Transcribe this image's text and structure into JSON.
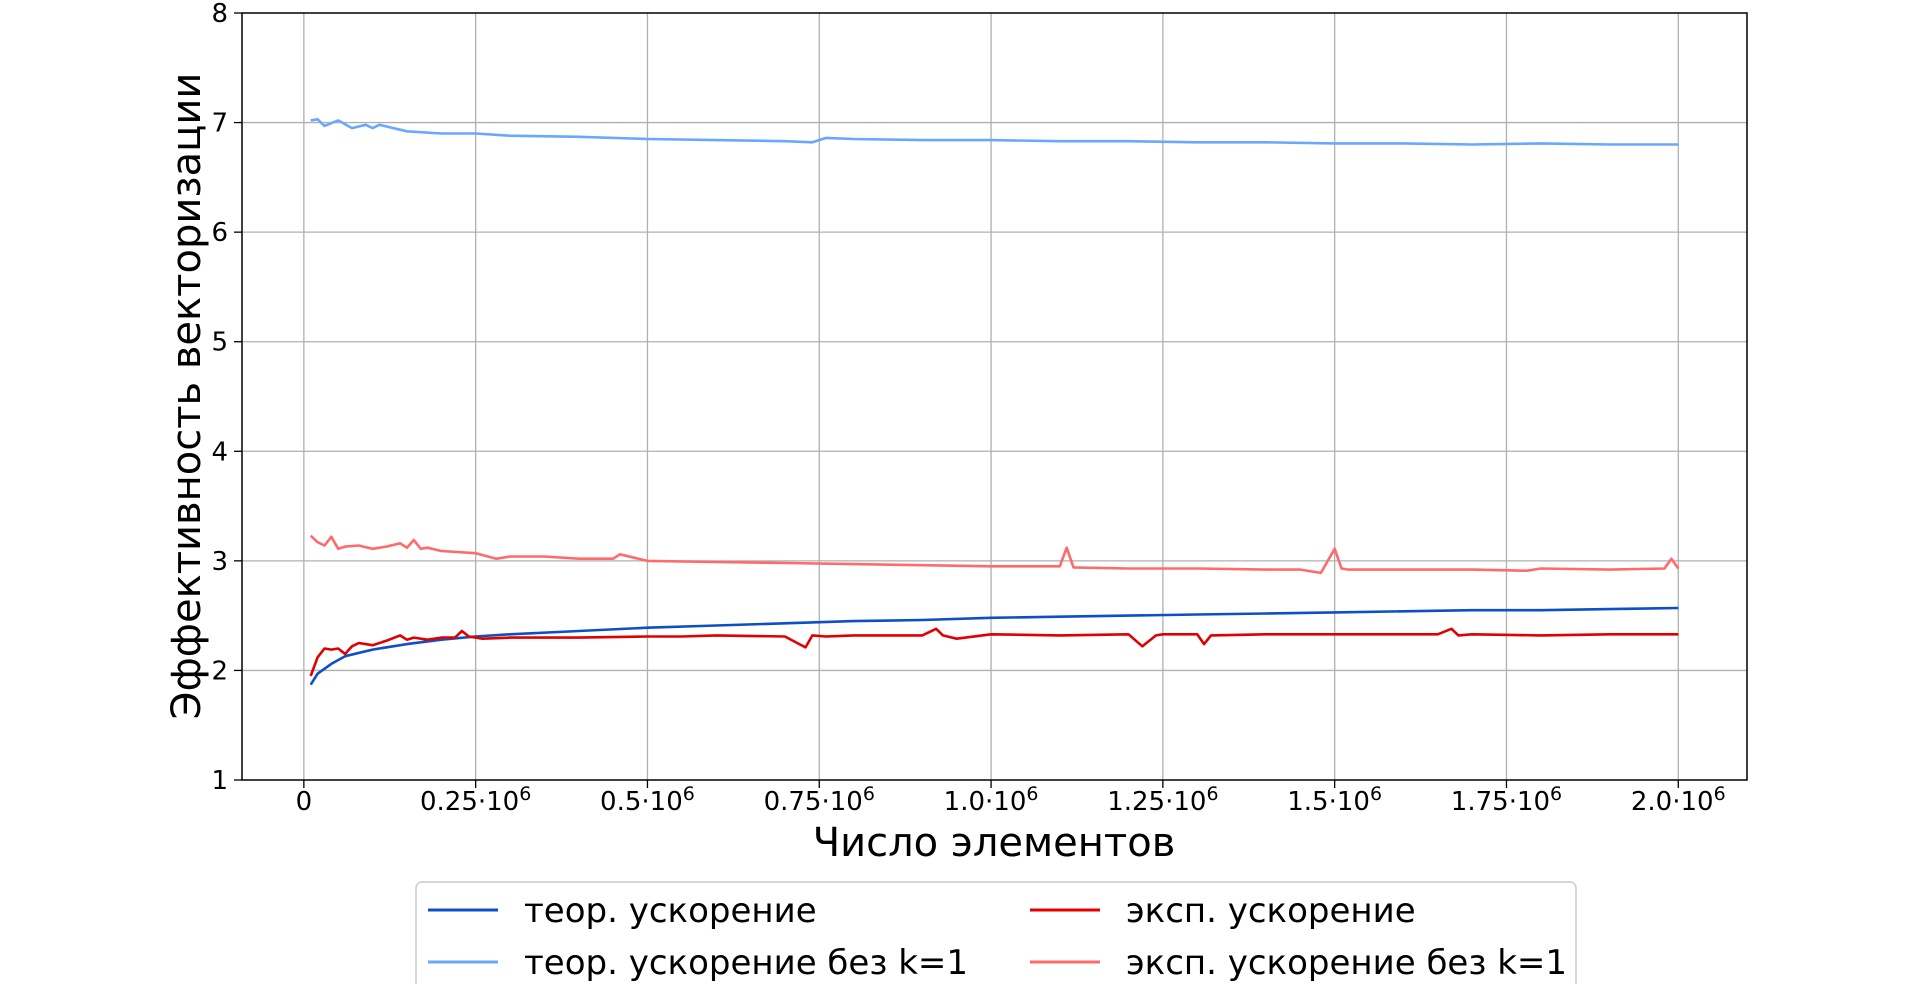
{
  "chart_data": {
    "type": "line",
    "xlabel": "Число элементов",
    "ylabel": "Эффективность векторизации",
    "xlim": [
      -90000,
      2100000
    ],
    "ylim": [
      1,
      8
    ],
    "grid": true,
    "legend_position": "bottom-center",
    "legend_columns": 2,
    "x_ticks": [
      {
        "value": 0,
        "mantissa": "0",
        "exponent": ""
      },
      {
        "value": 250000,
        "mantissa": "0.25",
        "exponent": "6"
      },
      {
        "value": 500000,
        "mantissa": "0.5",
        "exponent": "6"
      },
      {
        "value": 750000,
        "mantissa": "0.75",
        "exponent": "6"
      },
      {
        "value": 1000000,
        "mantissa": "1.0",
        "exponent": "6"
      },
      {
        "value": 1250000,
        "mantissa": "1.25",
        "exponent": "6"
      },
      {
        "value": 1500000,
        "mantissa": "1.5",
        "exponent": "6"
      },
      {
        "value": 1750000,
        "mantissa": "1.75",
        "exponent": "6"
      },
      {
        "value": 2000000,
        "mantissa": "2.0",
        "exponent": "6"
      }
    ],
    "x_tick_times": "·10",
    "y_ticks": [
      1,
      2,
      3,
      4,
      5,
      6,
      7,
      8
    ],
    "series": [
      {
        "name": "теор. ускорение",
        "color": "#0c4fc6",
        "x": [
          10000,
          20000,
          40000,
          60000,
          100000,
          150000,
          200000,
          250000,
          300000,
          400000,
          500000,
          600000,
          700000,
          800000,
          900000,
          1000000,
          1100000,
          1200000,
          1300000,
          1400000,
          1500000,
          1600000,
          1700000,
          1800000,
          1900000,
          2000000
        ],
        "y": [
          1.87,
          1.97,
          2.06,
          2.13,
          2.19,
          2.24,
          2.28,
          2.31,
          2.33,
          2.36,
          2.39,
          2.41,
          2.43,
          2.45,
          2.46,
          2.48,
          2.49,
          2.5,
          2.51,
          2.52,
          2.53,
          2.54,
          2.55,
          2.55,
          2.56,
          2.57
        ]
      },
      {
        "name": "теор. ускорение без k=1",
        "color": "#6aa7ff",
        "x": [
          10000,
          20000,
          30000,
          50000,
          70000,
          90000,
          100000,
          110000,
          150000,
          200000,
          250000,
          300000,
          400000,
          500000,
          600000,
          700000,
          740000,
          760000,
          800000,
          900000,
          1000000,
          1100000,
          1200000,
          1300000,
          1400000,
          1500000,
          1600000,
          1700000,
          1800000,
          1900000,
          1950000,
          2000000
        ],
        "y": [
          7.02,
          7.03,
          6.97,
          7.02,
          6.95,
          6.98,
          6.95,
          6.98,
          6.92,
          6.9,
          6.9,
          6.88,
          6.87,
          6.85,
          6.84,
          6.83,
          6.82,
          6.86,
          6.85,
          6.84,
          6.84,
          6.83,
          6.83,
          6.82,
          6.82,
          6.81,
          6.81,
          6.8,
          6.81,
          6.8,
          6.8,
          6.8
        ]
      },
      {
        "name": "эксп. ускорение",
        "color": "#e00000",
        "x": [
          10000,
          20000,
          30000,
          40000,
          50000,
          60000,
          70000,
          80000,
          100000,
          120000,
          140000,
          150000,
          160000,
          180000,
          200000,
          220000,
          230000,
          240000,
          260000,
          300000,
          400000,
          500000,
          550000,
          600000,
          700000,
          730000,
          740000,
          760000,
          800000,
          900000,
          920000,
          930000,
          950000,
          1000000,
          1100000,
          1200000,
          1220000,
          1240000,
          1250000,
          1300000,
          1310000,
          1320000,
          1400000,
          1500000,
          1600000,
          1650000,
          1670000,
          1680000,
          1700000,
          1800000,
          1900000,
          2000000
        ],
        "y": [
          1.95,
          2.12,
          2.2,
          2.19,
          2.2,
          2.15,
          2.22,
          2.25,
          2.23,
          2.27,
          2.32,
          2.28,
          2.3,
          2.28,
          2.3,
          2.3,
          2.36,
          2.31,
          2.29,
          2.3,
          2.3,
          2.31,
          2.31,
          2.32,
          2.31,
          2.21,
          2.32,
          2.31,
          2.32,
          2.32,
          2.38,
          2.32,
          2.29,
          2.33,
          2.32,
          2.33,
          2.22,
          2.32,
          2.33,
          2.33,
          2.24,
          2.32,
          2.33,
          2.33,
          2.33,
          2.33,
          2.38,
          2.32,
          2.33,
          2.32,
          2.33,
          2.33
        ]
      },
      {
        "name": "эксп. ускорение без k=1",
        "color": "#ff6b6b",
        "x": [
          10000,
          20000,
          30000,
          40000,
          50000,
          60000,
          80000,
          100000,
          120000,
          140000,
          150000,
          160000,
          170000,
          180000,
          200000,
          250000,
          280000,
          300000,
          350000,
          400000,
          450000,
          460000,
          500000,
          600000,
          700000,
          800000,
          900000,
          1000000,
          1100000,
          1110000,
          1120000,
          1200000,
          1300000,
          1400000,
          1450000,
          1480000,
          1500000,
          1510000,
          1520000,
          1600000,
          1700000,
          1780000,
          1800000,
          1900000,
          1980000,
          1990000,
          2000000
        ],
        "y": [
          3.23,
          3.17,
          3.14,
          3.22,
          3.11,
          3.13,
          3.14,
          3.11,
          3.13,
          3.16,
          3.12,
          3.19,
          3.11,
          3.12,
          3.09,
          3.07,
          3.02,
          3.04,
          3.04,
          3.02,
          3.02,
          3.06,
          3.0,
          2.99,
          2.98,
          2.97,
          2.96,
          2.95,
          2.95,
          3.12,
          2.94,
          2.93,
          2.93,
          2.92,
          2.92,
          2.89,
          3.11,
          2.93,
          2.92,
          2.92,
          2.92,
          2.91,
          2.93,
          2.92,
          2.93,
          3.02,
          2.93
        ]
      }
    ]
  }
}
